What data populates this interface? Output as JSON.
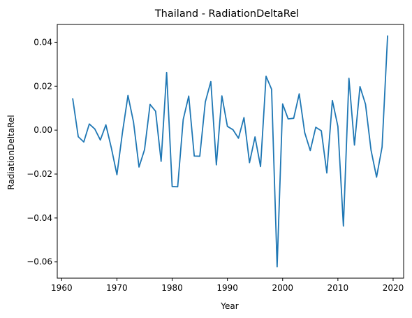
{
  "chart_data": {
    "type": "line",
    "title": "Thailand - RadiationDeltaRel",
    "xlabel": "Year",
    "ylabel": "RadiationDeltaRel",
    "xlim": [
      1959.2,
      2021.9
    ],
    "ylim": [
      -0.0674,
      0.0481
    ],
    "xticks": [
      1960,
      1970,
      1980,
      1990,
      2000,
      2010,
      2020
    ],
    "yticks": [
      -0.06,
      -0.04,
      -0.02,
      0.0,
      0.02,
      0.04
    ],
    "ytick_labels": [
      "−0.06",
      "−0.04",
      "−0.02",
      "0.00",
      "0.02",
      "0.04"
    ],
    "grid": false,
    "line_color": "#1f77b4",
    "series": [
      {
        "x": [
          1962,
          1963,
          1964,
          1965,
          1966,
          1967,
          1968,
          1969,
          1970,
          1971,
          1972,
          1973,
          1974,
          1975,
          1976,
          1977,
          1978,
          1979,
          1980,
          1981,
          1982,
          1983,
          1984,
          1985,
          1986,
          1987,
          1988,
          1989,
          1990,
          1991,
          1992,
          1993,
          1994,
          1995,
          1996,
          1997,
          1998,
          1999,
          2000,
          2001,
          2002,
          2003,
          2004,
          2005,
          2006,
          2007,
          2008,
          2009,
          2010,
          2011,
          2012,
          2013,
          2014,
          2015,
          2016,
          2017,
          2018,
          2019
        ],
        "values": [
          0.0143,
          -0.003,
          -0.0054,
          0.0028,
          0.0005,
          -0.0045,
          0.0024,
          -0.0082,
          -0.0203,
          -0.0011,
          0.0158,
          0.0037,
          -0.0168,
          -0.0089,
          0.0117,
          0.0086,
          -0.0142,
          0.0262,
          -0.0257,
          -0.0258,
          0.0048,
          0.0155,
          -0.0118,
          -0.0119,
          0.0128,
          0.0221,
          -0.0158,
          0.0156,
          0.0017,
          0.0002,
          -0.0037,
          0.0057,
          -0.0148,
          -0.0031,
          -0.0166,
          0.0245,
          0.0186,
          -0.0622,
          0.0119,
          0.0051,
          0.0054,
          0.0165,
          -0.0012,
          -0.0093,
          0.0013,
          -0.0003,
          -0.0195,
          0.0135,
          0.0017,
          -0.0437,
          0.0236,
          -0.0068,
          0.0198,
          0.0118,
          -0.0091,
          -0.0214,
          -0.0077,
          0.0429
        ]
      }
    ]
  }
}
